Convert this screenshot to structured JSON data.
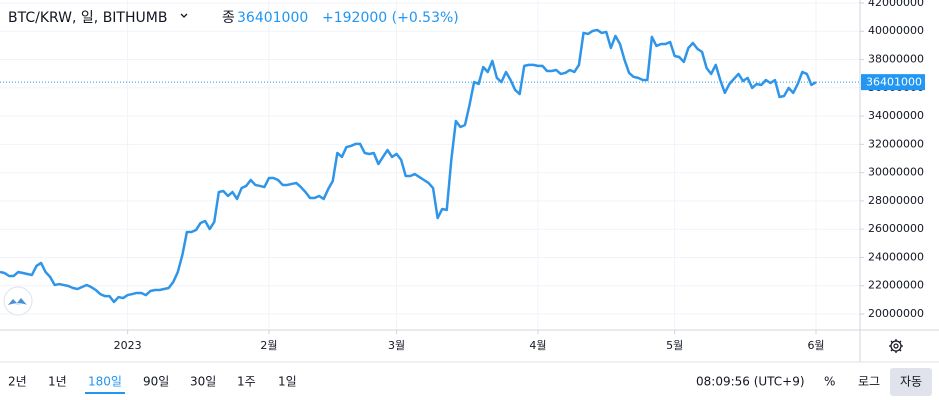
{
  "header": {
    "title": "BTC/KRW, 일, BITHUMB",
    "close_label": "종",
    "change": "+192000 (+0.53%)"
  },
  "toolbar": {
    "ranges": [
      "2년",
      "1년",
      "180일",
      "90일",
      "30일",
      "1주",
      "1일"
    ],
    "active": "180일",
    "time": "08:09:56 (UTC+9)",
    "percent": "%",
    "log": "로그",
    "auto": "자동"
  },
  "chart_data": {
    "type": "line",
    "categories": [
      null,
      null,
      null,
      null,
      null,
      null,
      null,
      null,
      null,
      null,
      null,
      null,
      null,
      null,
      null,
      null,
      null,
      null,
      null,
      null,
      null,
      null,
      null,
      null,
      null,
      null,
      null,
      null,
      "2023",
      null,
      null,
      null,
      null,
      null,
      null,
      null,
      null,
      null,
      null,
      null,
      null,
      null,
      null,
      null,
      null,
      null,
      null,
      null,
      null,
      null,
      null,
      null,
      null,
      null,
      null,
      null,
      null,
      null,
      null,
      "2월",
      null,
      null,
      null,
      null,
      null,
      null,
      null,
      null,
      null,
      null,
      null,
      null,
      null,
      null,
      null,
      null,
      null,
      null,
      null,
      null,
      null,
      null,
      null,
      null,
      null,
      null,
      null,
      "3월",
      null,
      null,
      null,
      null,
      null,
      null,
      null,
      null,
      null,
      null,
      null,
      null,
      null,
      null,
      null,
      null,
      null,
      null,
      null,
      null,
      null,
      null,
      null,
      null,
      null,
      null,
      null,
      null,
      null,
      null,
      "4월",
      null,
      null,
      null,
      null,
      null,
      null,
      null,
      null,
      null,
      null,
      null,
      null,
      null,
      null,
      null,
      null,
      null,
      null,
      null,
      null,
      null,
      null,
      null,
      null,
      null,
      null,
      null,
      null,
      null,
      "5월",
      null,
      null,
      null,
      null,
      null,
      null,
      null,
      null,
      null,
      null,
      null,
      null,
      null,
      null,
      null,
      null,
      null,
      null,
      null,
      null,
      null,
      null,
      null,
      null,
      null,
      null,
      null,
      null,
      null,
      null,
      "6월"
    ],
    "series": [
      {
        "name": "BTC/KRW",
        "color": "#2f95e8",
        "values": [
          22970000,
          22900000,
          22690000,
          22690000,
          22970000,
          22900000,
          22830000,
          22760000,
          23400000,
          23610000,
          22970000,
          22620000,
          22050000,
          22120000,
          22050000,
          21980000,
          21840000,
          21770000,
          21910000,
          22050000,
          21910000,
          21700000,
          21410000,
          21270000,
          21270000,
          20850000,
          21200000,
          21130000,
          21340000,
          21410000,
          21490000,
          21490000,
          21340000,
          21630000,
          21700000,
          21700000,
          21770000,
          21840000,
          22260000,
          22970000,
          24170000,
          25800000,
          25800000,
          25940000,
          26440000,
          26580000,
          26010000,
          26510000,
          28630000,
          28700000,
          28350000,
          28630000,
          28140000,
          28910000,
          29060000,
          29480000,
          29130000,
          29060000,
          28980000,
          29620000,
          29620000,
          29480000,
          29130000,
          29130000,
          29200000,
          29270000,
          28980000,
          28630000,
          28210000,
          28210000,
          28350000,
          28140000,
          28840000,
          29410000,
          31390000,
          31110000,
          31810000,
          31890000,
          32030000,
          32030000,
          31390000,
          31320000,
          31390000,
          30610000,
          31110000,
          31600000,
          31110000,
          31320000,
          30900000,
          29760000,
          29760000,
          29900000,
          29690000,
          29480000,
          29270000,
          28910000,
          26790000,
          27430000,
          27360000,
          30900000,
          33650000,
          33230000,
          33370000,
          34790000,
          36410000,
          36270000,
          37470000,
          37120000,
          37900000,
          36700000,
          36410000,
          37120000,
          36550000,
          35850000,
          35560000,
          37550000,
          37620000,
          37620000,
          37550000,
          37550000,
          37190000,
          37190000,
          37260000,
          36980000,
          37050000,
          37260000,
          37120000,
          37620000,
          39880000,
          39810000,
          40020000,
          40090000,
          39880000,
          39950000,
          38820000,
          39670000,
          39100000,
          37970000,
          37050000,
          36770000,
          36700000,
          36550000,
          36550000,
          39600000,
          38960000,
          39100000,
          39100000,
          39240000,
          38250000,
          38180000,
          37830000,
          38820000,
          39170000,
          38750000,
          38540000,
          37400000,
          36980000,
          37620000,
          36550000,
          35640000,
          36270000,
          36630000,
          36980000,
          36480000,
          36700000,
          35990000,
          36270000,
          36200000,
          36550000,
          36340000,
          36550000,
          35350000,
          35420000,
          35990000,
          35640000,
          36270000,
          37120000,
          36980000,
          36200000,
          36401000
        ]
      }
    ],
    "ylim": [
      18870000,
      42210000
    ],
    "yticks": [
      20000000,
      22000000,
      24000000,
      26000000,
      28000000,
      30000000,
      32000000,
      34000000,
      36000000,
      38000000,
      40000000,
      42000000
    ],
    "grid": true,
    "last_price_line": true
  }
}
